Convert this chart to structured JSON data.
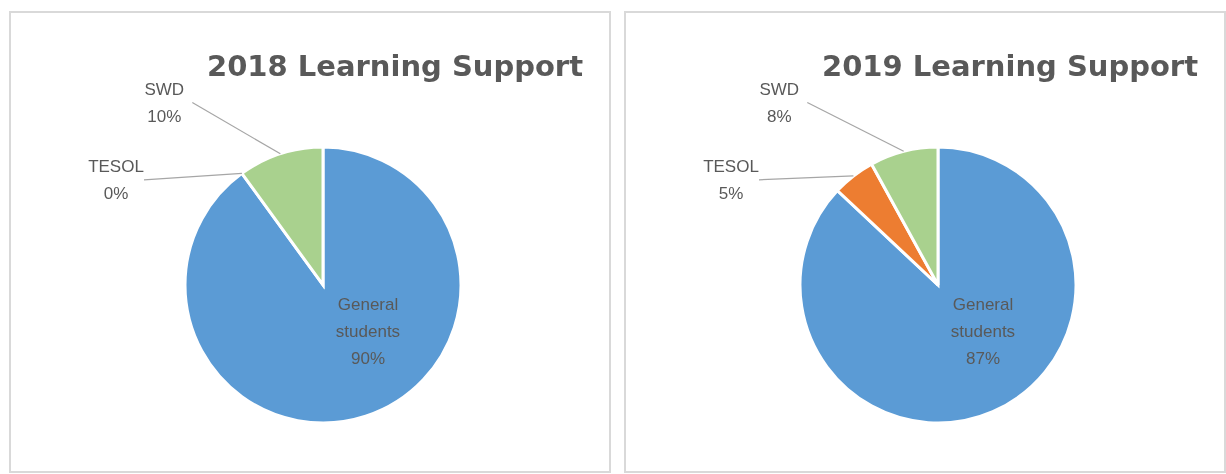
{
  "chart_data": [
    {
      "type": "pie",
      "title": "2018 Learning Support",
      "categories": [
        "General students",
        "TESOL",
        "SWD"
      ],
      "values": [
        90,
        0,
        10
      ],
      "colors": [
        "#5b9bd5",
        "#ed7d31",
        "#a9d18e"
      ],
      "value_labels": [
        "90%",
        "0%",
        "10%"
      ],
      "legend": false
    },
    {
      "type": "pie",
      "title": "2019 Learning Support",
      "categories": [
        "General students",
        "TESOL",
        "SWD"
      ],
      "values": [
        87,
        5,
        8
      ],
      "colors": [
        "#5b9bd5",
        "#ed7d31",
        "#a9d18e"
      ],
      "value_labels": [
        "87%",
        "5%",
        "8%"
      ],
      "legend": false
    }
  ]
}
